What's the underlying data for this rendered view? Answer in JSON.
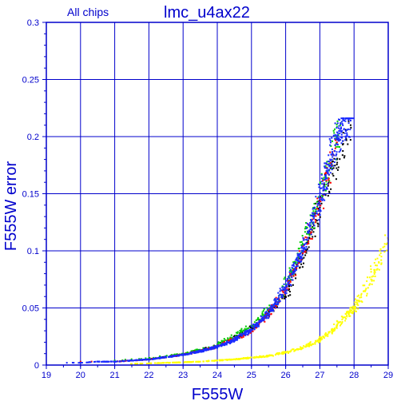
{
  "chart_data": {
    "type": "scatter",
    "title": "lmc_u4ax22",
    "subtitle": "All chips",
    "xlabel": "F555W",
    "ylabel": "F555W error",
    "xlim": [
      19,
      29
    ],
    "ylim": [
      0,
      0.3
    ],
    "xticks": [
      "19",
      "20",
      "21",
      "22",
      "23",
      "24",
      "25",
      "26",
      "27",
      "28",
      "29"
    ],
    "yticks": [
      "0",
      "0.05",
      "0.1",
      "0.15",
      "0.2",
      "0.25",
      "0.3"
    ],
    "grid": true,
    "colors": {
      "axis": "#0000cc",
      "grid": "#0000cc",
      "chip_blue": "#1a2bff",
      "chip_red": "#ff0000",
      "chip_green": "#00cc00",
      "chip_black": "#000000",
      "yellow": "#ffff00"
    },
    "series": [
      {
        "color": "#1a2bff",
        "x": [
          19.6,
          20.0,
          20.5,
          21.0,
          21.5,
          22.0,
          22.5,
          23.0,
          23.5,
          24.0,
          24.5,
          25.0,
          25.5,
          26.0,
          26.5,
          27.0,
          27.3,
          27.6,
          27.9
        ],
        "y": [
          0.002,
          0.002,
          0.003,
          0.003,
          0.004,
          0.005,
          0.007,
          0.009,
          0.012,
          0.016,
          0.022,
          0.031,
          0.045,
          0.068,
          0.1,
          0.145,
          0.18,
          0.205,
          0.214
        ]
      },
      {
        "color": "#ff0000",
        "x": [
          20.0,
          21.0,
          22.0,
          23.0,
          24.0,
          25.0,
          25.5,
          26.0,
          26.5,
          27.0,
          27.5
        ],
        "y": [
          0.003,
          0.003,
          0.005,
          0.009,
          0.016,
          0.03,
          0.044,
          0.066,
          0.098,
          0.14,
          0.195
        ]
      },
      {
        "color": "#00cc00",
        "x": [
          21.0,
          22.0,
          23.0,
          24.0,
          25.0,
          25.8,
          26.3,
          26.8,
          27.2,
          27.6
        ],
        "y": [
          0.004,
          0.006,
          0.01,
          0.018,
          0.034,
          0.058,
          0.09,
          0.13,
          0.17,
          0.21
        ]
      },
      {
        "color": "#000000",
        "x": [
          21.0,
          22.0,
          23.0,
          24.0,
          25.0,
          26.0,
          26.6,
          27.0,
          27.5,
          27.9
        ],
        "y": [
          0.003,
          0.005,
          0.009,
          0.017,
          0.032,
          0.06,
          0.1,
          0.14,
          0.18,
          0.21
        ]
      },
      {
        "color": "#ffff00",
        "x": [
          21.5,
          22.5,
          23.5,
          24.5,
          25.5,
          26.0,
          26.5,
          27.0,
          27.5,
          28.0,
          28.5,
          29.0
        ],
        "y": [
          0.001,
          0.002,
          0.003,
          0.005,
          0.008,
          0.011,
          0.015,
          0.022,
          0.034,
          0.05,
          0.075,
          0.11
        ]
      }
    ]
  }
}
